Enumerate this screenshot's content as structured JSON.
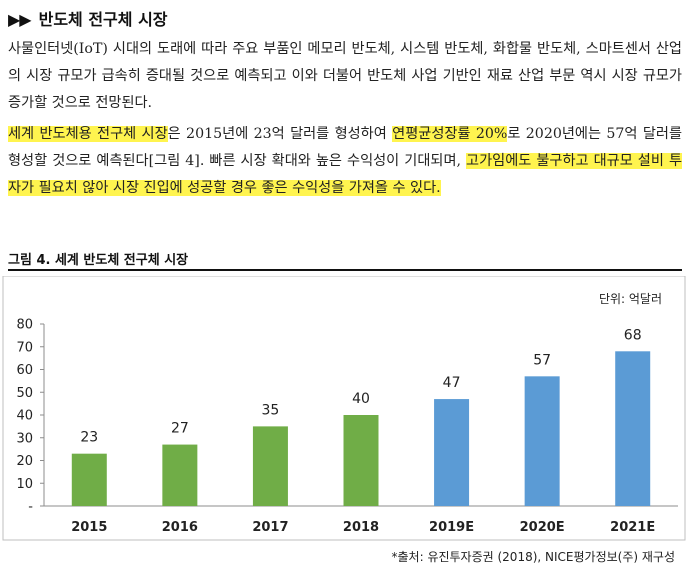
{
  "section": {
    "bullets": "▶▶",
    "title": "반도체 전구체 시장"
  },
  "paragraph1": "사물인터넷(IoT) 시대의 도래에 따라 주요 부품인 메모리 반도체, 시스템 반도체, 화합물 반도체, 스마트센서 산업의 시장 규모가 급속히 증대될 것으로 예측되고 이와 더불어 반도체 사업 기반인 재료 산업 부문 역시 시장 규모가 증가할 것으로 전망된다.",
  "paragraph2": {
    "hl1": "세계 반도체용 전구체 시장",
    "t1": "은 2015년에 23억 달러를 형성하여 ",
    "hl2": "연평균성장률 20%",
    "t2": "로 2020년에는 57억 달러를 형성할 것으로 예측된다[그림 4]. 빠른 시장 확대와 높은 수익성이 기대되며, ",
    "hl3": "고가임에도 불구하고 대규모 설비 투자가 필요치 않아 시장 진입에 성공할 경우 좋은 수익성을 가져올 수 있다."
  },
  "figure": {
    "caption": "그림 4. 세계 반도체 전구체 시장",
    "source": "*출처: 유진투자증권 (2018), NICE평가정보(주) 재구성"
  },
  "chart_data": {
    "type": "bar",
    "unit_label": "단위: 억달러",
    "categories": [
      "2015",
      "2016",
      "2017",
      "2018",
      "2019E",
      "2020E",
      "2021E"
    ],
    "values": [
      23,
      27,
      35,
      40,
      47,
      57,
      68
    ],
    "value_labels": [
      "23",
      "27",
      "35",
      "40",
      "47",
      "57",
      "68"
    ],
    "bar_colors": [
      "#70ad47",
      "#70ad47",
      "#70ad47",
      "#70ad47",
      "#5b9bd5",
      "#5b9bd5",
      "#5b9bd5"
    ],
    "yticks": [
      "-",
      "10",
      "20",
      "30",
      "40",
      "50",
      "60",
      "70",
      "80"
    ],
    "ylim": [
      0,
      80
    ],
    "grid": false
  }
}
